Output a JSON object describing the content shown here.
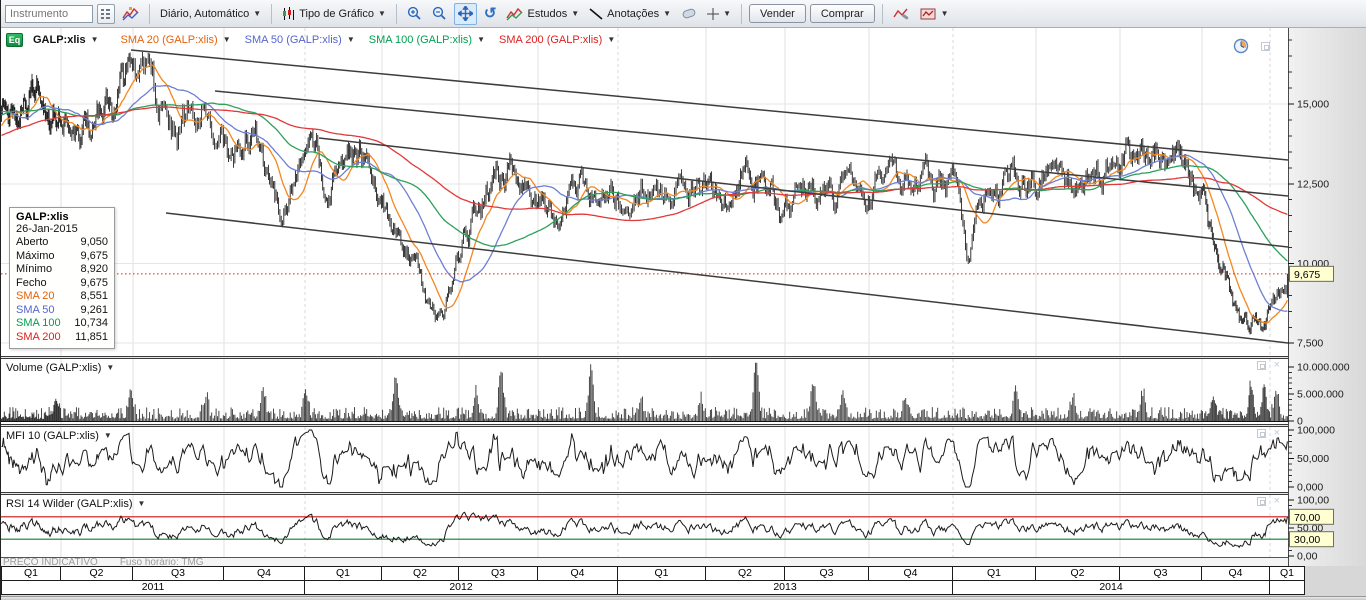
{
  "toolbar": {
    "instrument_placeholder": "Instrumento",
    "period_label": "Diário, Automático",
    "chart_type_label": "Tipo de Gráfico",
    "studies_label": "Estudos",
    "annotations_label": "Anotações",
    "sell_label": "Vender",
    "buy_label": "Comprar"
  },
  "legend": {
    "badge": "Eq",
    "symbol": "GALP:xlis",
    "items": [
      {
        "label": "SMA 20 (GALP:xlis)",
        "color": "#e8600a"
      },
      {
        "label": "SMA 50 (GALP:xlis)",
        "color": "#5565cf"
      },
      {
        "label": "SMA 100 (GALP:xlis)",
        "color": "#00a050"
      },
      {
        "label": "SMA 200 (GALP:xlis)",
        "color": "#e02020"
      }
    ]
  },
  "tooltip": {
    "title": "GALP:xlis",
    "date": "26-Jan-2015",
    "rows": [
      {
        "label": "Aberto",
        "value": "9,050",
        "color": "#111111"
      },
      {
        "label": "Máximo",
        "value": "9,675",
        "color": "#111111"
      },
      {
        "label": "Mínimo",
        "value": "8,920",
        "color": "#111111"
      },
      {
        "label": "Fecho",
        "value": "9,675",
        "color": "#111111"
      },
      {
        "label": "SMA 20",
        "value": "8,551",
        "color": "#e8600a"
      },
      {
        "label": "SMA 50",
        "value": "9,261",
        "color": "#5565cf"
      },
      {
        "label": "SMA 100",
        "value": "10,734",
        "color": "#00a050"
      },
      {
        "label": "SMA 200",
        "value": "11,851",
        "color": "#e02020"
      }
    ]
  },
  "panels": {
    "volume": {
      "label": "Volume (GALP:xlis)"
    },
    "mfi": {
      "label": "MFI 10 (GALP:xlis)"
    },
    "rsi": {
      "label": "RSI 14 Wilder (GALP:xlis)"
    }
  },
  "footer": {
    "notice": "PREÇO INDICATIVO",
    "timezone": "Fuso horário: TMG"
  },
  "chart_data": {
    "type": "candlestick",
    "symbol": "GALP:xlis",
    "timeframe": "Daily, Jan 2011 - 26 Jan 2015",
    "studies": [
      "SMA 20",
      "SMA 50",
      "SMA 100",
      "SMA 200",
      "Volume",
      "MFI 10",
      "RSI 14 Wilder"
    ],
    "seed": 13,
    "last_bar": {
      "open": 9.05,
      "high": 9.675,
      "low": 8.92,
      "close": 9.675
    },
    "sma_values_last": {
      "sma20": 8.551,
      "sma50": 9.261,
      "sma100": 10.734,
      "sma200": 11.851
    },
    "price_axis": {
      "ylim": [
        7.099,
        17.384
      ],
      "ticks": [
        {
          "v": 15.0,
          "label": "15,000"
        },
        {
          "v": 12.5,
          "label": "12,500"
        },
        {
          "v": 10.0,
          "label": "10,000"
        },
        {
          "v": 7.5,
          "label": "7,500"
        }
      ],
      "minor_step": 0.5,
      "last_price": 9.675,
      "last_price_label": "9,675"
    },
    "volume_axis": {
      "ylim": [
        0,
        10000000
      ],
      "ticks": [
        {
          "v": 10000000,
          "label": "10.000.000"
        },
        {
          "v": 5000000,
          "label": "5.000.000"
        },
        {
          "v": 0,
          "label": "0"
        }
      ],
      "minor_step": 1000000
    },
    "mfi_axis": {
      "ylim": [
        0,
        100
      ],
      "ticks": [
        {
          "v": 100,
          "label": "100,000"
        },
        {
          "v": 50,
          "label": "50,000"
        },
        {
          "v": 0,
          "label": "0,000"
        }
      ],
      "minor_step": 10
    },
    "rsi_axis": {
      "ylim": [
        0,
        100
      ],
      "ticks": [
        {
          "v": 100,
          "label": "100,00"
        },
        {
          "v": 50,
          "label": "50,00"
        },
        {
          "v": 0,
          "label": "0,00"
        }
      ],
      "minor_step": 10,
      "bands": [
        {
          "v": 70,
          "label": "70,00",
          "color": "#cc1111"
        },
        {
          "v": 30,
          "label": "30,00",
          "color": "#0a7d32"
        }
      ]
    },
    "x_boundaries": [
      0,
      60,
      132,
      223,
      304,
      381,
      458,
      537,
      617,
      705,
      784,
      868,
      952,
      1035,
      1119,
      1201,
      1269,
      1287
    ],
    "x_axis_boundaries": [
      0,
      60,
      132,
      223,
      304,
      381,
      458,
      537,
      617,
      705,
      784,
      868,
      952,
      1035,
      1119,
      1201,
      1269,
      1304
    ],
    "year_boundary_indices": [
      4,
      8,
      12,
      16
    ],
    "x_quarters": [
      "Q1",
      "Q2",
      "Q3",
      "Q4",
      "Q1",
      "Q2",
      "Q3",
      "Q4",
      "Q1",
      "Q2",
      "Q3",
      "Q4",
      "Q1",
      "Q2",
      "Q3",
      "Q4",
      "Q1"
    ],
    "x_years": [
      {
        "label": "2011",
        "from": 0,
        "to": 4
      },
      {
        "label": "2012",
        "from": 4,
        "to": 8
      },
      {
        "label": "2013",
        "from": 8,
        "to": 12
      },
      {
        "label": "2014",
        "from": 12,
        "to": 16
      },
      {
        "label": "",
        "from": 16,
        "to": 17
      }
    ],
    "pre_anchors": [
      [
        -200,
        12.5
      ],
      [
        -140,
        13.3
      ],
      [
        -90,
        14.2
      ],
      [
        -45,
        15.0
      ],
      [
        -15,
        14.5
      ]
    ],
    "price_anchors": [
      [
        0,
        14.35
      ],
      [
        32,
        15.1
      ],
      [
        75,
        14.2
      ],
      [
        112,
        15.35
      ],
      [
        128,
        16.45
      ],
      [
        150,
        15.3
      ],
      [
        175,
        13.95
      ],
      [
        205,
        15.2
      ],
      [
        232,
        13.6
      ],
      [
        250,
        14.3
      ],
      [
        283,
        11.5
      ],
      [
        300,
        12.9
      ],
      [
        315,
        13.3
      ],
      [
        330,
        12.4
      ],
      [
        345,
        12.9
      ],
      [
        360,
        13.3
      ],
      [
        375,
        12.2
      ],
      [
        400,
        10.9
      ],
      [
        420,
        9.3
      ],
      [
        438,
        8.15
      ],
      [
        452,
        9.4
      ],
      [
        465,
        10.9
      ],
      [
        480,
        11.8
      ],
      [
        495,
        12.8
      ],
      [
        510,
        13.05
      ],
      [
        525,
        12.45
      ],
      [
        540,
        11.9
      ],
      [
        552,
        11.6
      ],
      [
        568,
        12.05
      ],
      [
        585,
        12.4
      ],
      [
        600,
        12.1
      ],
      [
        615,
        11.8
      ],
      [
        630,
        12.1
      ],
      [
        645,
        12.3
      ],
      [
        660,
        11.9
      ],
      [
        675,
        12.1
      ],
      [
        692,
        12.5
      ],
      [
        705,
        12.2
      ],
      [
        718,
        12.05
      ],
      [
        732,
        12.35
      ],
      [
        745,
        12.6
      ],
      [
        760,
        12.45
      ],
      [
        775,
        12.1
      ],
      [
        790,
        11.85
      ],
      [
        805,
        12.25
      ],
      [
        820,
        11.95
      ],
      [
        835,
        12.3
      ],
      [
        850,
        12.55
      ],
      [
        865,
        12.3
      ],
      [
        880,
        12.6
      ],
      [
        895,
        12.4
      ],
      [
        910,
        12.8
      ],
      [
        925,
        12.6
      ],
      [
        940,
        12.35
      ],
      [
        955,
        12.2
      ],
      [
        968,
        10.15
      ],
      [
        980,
        11.6
      ],
      [
        995,
        12.3
      ],
      [
        1010,
        12.7
      ],
      [
        1025,
        12.45
      ],
      [
        1040,
        12.7
      ],
      [
        1055,
        13.0
      ],
      [
        1068,
        12.65
      ],
      [
        1080,
        12.45
      ],
      [
        1092,
        12.7
      ],
      [
        1105,
        12.9
      ],
      [
        1118,
        12.7
      ],
      [
        1130,
        13.25
      ],
      [
        1140,
        13.6
      ],
      [
        1152,
        13.3
      ],
      [
        1163,
        13.1
      ],
      [
        1175,
        12.9
      ],
      [
        1185,
        12.85
      ],
      [
        1195,
        12.25
      ],
      [
        1203,
        11.7
      ],
      [
        1212,
        10.4
      ],
      [
        1225,
        9.7
      ],
      [
        1238,
        8.3
      ],
      [
        1247,
        7.95
      ],
      [
        1253,
        8.6
      ],
      [
        1260,
        8.2
      ],
      [
        1268,
        8.5
      ],
      [
        1275,
        8.85
      ],
      [
        1281,
        9.4
      ]
    ],
    "volume_base": 1.0,
    "volume_spikes": [
      [
        55,
        3.4
      ],
      [
        130,
        4.3
      ],
      [
        205,
        3.6
      ],
      [
        262,
        5.2
      ],
      [
        305,
        4.1
      ],
      [
        395,
        7.2
      ],
      [
        475,
        4.5
      ],
      [
        500,
        8.7
      ],
      [
        590,
        9.7
      ],
      [
        640,
        3.3
      ],
      [
        700,
        3.2
      ],
      [
        755,
        10.9
      ],
      [
        812,
        6.2
      ],
      [
        842,
        4.6
      ],
      [
        905,
        3.0
      ],
      [
        1015,
        5.5
      ],
      [
        1072,
        3.2
      ],
      [
        1142,
        4.2
      ],
      [
        1212,
        3.4
      ],
      [
        1250,
        5.8
      ],
      [
        1263,
        4.8
      ],
      [
        1275,
        4.3
      ]
    ],
    "trend_lines": [
      [
        130,
        22,
        1287,
        132
      ],
      [
        214,
        63,
        1287,
        168
      ],
      [
        318,
        110,
        1287,
        219
      ],
      [
        165,
        185,
        1287,
        315
      ]
    ],
    "colors": {
      "bar": "#141414",
      "sma20": "#f5871f",
      "sma50": "#6f7fd4",
      "sma100": "#2ca05a",
      "sma200": "#e23a3a",
      "volume": "#333333",
      "oscillator": "#1b1b1b",
      "grid": "#e0e0e0",
      "last_price_line": "#ff1111",
      "trend": "#3d3d3d",
      "tag_bg": "#ffffd2"
    }
  }
}
